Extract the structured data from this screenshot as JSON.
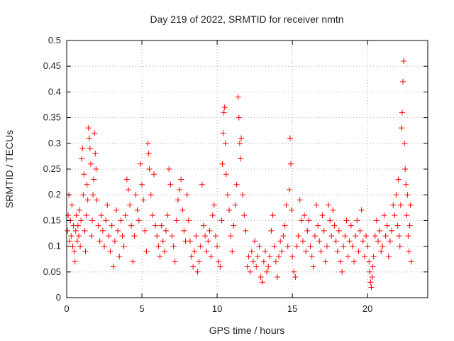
{
  "chart_data": {
    "type": "scatter",
    "title": "Day 219 of 2022, SRMTID for receiver nmtn",
    "xlabel": "GPS time / hours",
    "ylabel": "SRMTID / TECUs",
    "xlim": [
      0,
      24
    ],
    "ylim": [
      0,
      0.5
    ],
    "x_ticks": [
      0,
      5,
      10,
      15,
      20
    ],
    "x_tick_labels": [
      "0",
      "5",
      "10",
      "15",
      "20"
    ],
    "y_ticks": [
      0,
      0.05,
      0.1,
      0.15,
      0.2,
      0.25,
      0.3,
      0.35,
      0.4,
      0.45,
      0.5
    ],
    "y_tick_labels": [
      "0",
      "0.05",
      "0.1",
      "0.15",
      "0.2",
      "0.25",
      "0.3",
      "0.35",
      "0.4",
      "0.45",
      "0.5"
    ],
    "grid": true,
    "marker": "+",
    "series": [
      {
        "name": "SRMTID",
        "color": "#ff0000",
        "points": [
          [
            0.05,
            0.13
          ],
          [
            0.1,
            0.16
          ],
          [
            0.15,
            0.2
          ],
          [
            0.2,
            0.11
          ],
          [
            0.25,
            0.15
          ],
          [
            0.3,
            0.12
          ],
          [
            0.35,
            0.18
          ],
          [
            0.4,
            0.1
          ],
          [
            0.45,
            0.14
          ],
          [
            0.5,
            0.09
          ],
          [
            0.55,
            0.07
          ],
          [
            0.6,
            0.13
          ],
          [
            0.65,
            0.16
          ],
          [
            0.7,
            0.11
          ],
          [
            0.75,
            0.14
          ],
          [
            0.8,
            0.12
          ],
          [
            0.85,
            0.17
          ],
          [
            0.9,
            0.1
          ],
          [
            0.95,
            0.15
          ],
          [
            1.0,
            0.27
          ],
          [
            1.05,
            0.29
          ],
          [
            1.1,
            0.2
          ],
          [
            1.15,
            0.24
          ],
          [
            1.2,
            0.13
          ],
          [
            1.25,
            0.09
          ],
          [
            1.3,
            0.16
          ],
          [
            1.35,
            0.22
          ],
          [
            1.4,
            0.19
          ],
          [
            1.45,
            0.33
          ],
          [
            1.5,
            0.31
          ],
          [
            1.55,
            0.29
          ],
          [
            1.6,
            0.26
          ],
          [
            1.65,
            0.12
          ],
          [
            1.7,
            0.15
          ],
          [
            1.75,
            0.2
          ],
          [
            1.8,
            0.23
          ],
          [
            1.85,
            0.32
          ],
          [
            1.9,
            0.28
          ],
          [
            1.95,
            0.25
          ],
          [
            2.0,
            0.19
          ],
          [
            2.1,
            0.14
          ],
          [
            2.2,
            0.11
          ],
          [
            2.3,
            0.16
          ],
          [
            2.4,
            0.13
          ],
          [
            2.5,
            0.1
          ],
          [
            2.6,
            0.15
          ],
          [
            2.7,
            0.18
          ],
          [
            2.8,
            0.12
          ],
          [
            2.9,
            0.09
          ],
          [
            3.0,
            0.14
          ],
          [
            3.1,
            0.06
          ],
          [
            3.2,
            0.11
          ],
          [
            3.3,
            0.17
          ],
          [
            3.4,
            0.13
          ],
          [
            3.5,
            0.08
          ],
          [
            3.6,
            0.15
          ],
          [
            3.7,
            0.12
          ],
          [
            3.8,
            0.1
          ],
          [
            3.9,
            0.16
          ],
          [
            4.0,
            0.23
          ],
          [
            4.1,
            0.21
          ],
          [
            4.2,
            0.18
          ],
          [
            4.3,
            0.14
          ],
          [
            4.4,
            0.07
          ],
          [
            4.5,
            0.12
          ],
          [
            4.6,
            0.2
          ],
          [
            4.7,
            0.17
          ],
          [
            4.8,
            0.15
          ],
          [
            4.9,
            0.26
          ],
          [
            5.0,
            0.22
          ],
          [
            5.1,
            0.19
          ],
          [
            5.2,
            0.13
          ],
          [
            5.3,
            0.09
          ],
          [
            5.4,
            0.3
          ],
          [
            5.45,
            0.28
          ],
          [
            5.5,
            0.25
          ],
          [
            5.6,
            0.2
          ],
          [
            5.7,
            0.16
          ],
          [
            5.8,
            0.24
          ],
          [
            5.9,
            0.14
          ],
          [
            6.0,
            0.12
          ],
          [
            6.1,
            0.1
          ],
          [
            6.2,
            0.08
          ],
          [
            6.3,
            0.14
          ],
          [
            6.4,
            0.11
          ],
          [
            6.5,
            0.09
          ],
          [
            6.6,
            0.13
          ],
          [
            6.7,
            0.16
          ],
          [
            6.8,
            0.25
          ],
          [
            6.9,
            0.22
          ],
          [
            7.0,
            0.12
          ],
          [
            7.1,
            0.1
          ],
          [
            7.2,
            0.07
          ],
          [
            7.3,
            0.15
          ],
          [
            7.4,
            0.19
          ],
          [
            7.5,
            0.21
          ],
          [
            7.6,
            0.23
          ],
          [
            7.7,
            0.17
          ],
          [
            7.8,
            0.13
          ],
          [
            7.9,
            0.11
          ],
          [
            8.0,
            0.2
          ],
          [
            8.1,
            0.15
          ],
          [
            8.2,
            0.11
          ],
          [
            8.3,
            0.08
          ],
          [
            8.4,
            0.06
          ],
          [
            8.5,
            0.09
          ],
          [
            8.6,
            0.12
          ],
          [
            8.7,
            0.05
          ],
          [
            8.8,
            0.07
          ],
          [
            8.9,
            0.1
          ],
          [
            9.0,
            0.22
          ],
          [
            9.1,
            0.14
          ],
          [
            9.2,
            0.12
          ],
          [
            9.3,
            0.09
          ],
          [
            9.4,
            0.11
          ],
          [
            9.5,
            0.13
          ],
          [
            9.6,
            0.08
          ],
          [
            9.7,
            0.16
          ],
          [
            9.8,
            0.18
          ],
          [
            9.9,
            0.12
          ],
          [
            10.0,
            0.1
          ],
          [
            10.1,
            0.07
          ],
          [
            10.2,
            0.06
          ],
          [
            10.3,
            0.15
          ],
          [
            10.35,
            0.26
          ],
          [
            10.4,
            0.32
          ],
          [
            10.45,
            0.36
          ],
          [
            10.5,
            0.37
          ],
          [
            10.55,
            0.3
          ],
          [
            10.6,
            0.24
          ],
          [
            10.7,
            0.2
          ],
          [
            10.8,
            0.17
          ],
          [
            10.9,
            0.12
          ],
          [
            11.0,
            0.09
          ],
          [
            11.1,
            0.14
          ],
          [
            11.2,
            0.18
          ],
          [
            11.3,
            0.22
          ],
          [
            11.4,
            0.39
          ],
          [
            11.45,
            0.35
          ],
          [
            11.5,
            0.3
          ],
          [
            11.55,
            0.27
          ],
          [
            11.6,
            0.31
          ],
          [
            11.7,
            0.2
          ],
          [
            11.8,
            0.16
          ],
          [
            11.9,
            0.13
          ],
          [
            12.0,
            0.06
          ],
          [
            12.1,
            0.08
          ],
          [
            12.2,
            0.05
          ],
          [
            12.3,
            0.09
          ],
          [
            12.4,
            0.07
          ],
          [
            12.5,
            0.11
          ],
          [
            12.6,
            0.06
          ],
          [
            12.7,
            0.08
          ],
          [
            12.8,
            0.1
          ],
          [
            12.9,
            0.04
          ],
          [
            13.0,
            0.03
          ],
          [
            13.1,
            0.07
          ],
          [
            13.2,
            0.09
          ],
          [
            13.3,
            0.05
          ],
          [
            13.4,
            0.06
          ],
          [
            13.5,
            0.08
          ],
          [
            13.6,
            0.13
          ],
          [
            13.7,
            0.16
          ],
          [
            13.8,
            0.1
          ],
          [
            13.9,
            0.07
          ],
          [
            14.0,
            0.04
          ],
          [
            14.1,
            0.08
          ],
          [
            14.2,
            0.11
          ],
          [
            14.3,
            0.09
          ],
          [
            14.4,
            0.12
          ],
          [
            14.5,
            0.14
          ],
          [
            14.6,
            0.18
          ],
          [
            14.7,
            0.1
          ],
          [
            14.8,
            0.21
          ],
          [
            14.85,
            0.31
          ],
          [
            14.9,
            0.26
          ],
          [
            14.95,
            0.17
          ],
          [
            15.0,
            0.08
          ],
          [
            15.1,
            0.05
          ],
          [
            15.2,
            0.04
          ],
          [
            15.3,
            0.1
          ],
          [
            15.4,
            0.12
          ],
          [
            15.5,
            0.19
          ],
          [
            15.6,
            0.15
          ],
          [
            15.7,
            0.11
          ],
          [
            15.8,
            0.16
          ],
          [
            15.9,
            0.09
          ],
          [
            16.0,
            0.13
          ],
          [
            16.1,
            0.15
          ],
          [
            16.2,
            0.1
          ],
          [
            16.3,
            0.08
          ],
          [
            16.4,
            0.06
          ],
          [
            16.5,
            0.12
          ],
          [
            16.6,
            0.18
          ],
          [
            16.7,
            0.14
          ],
          [
            16.8,
            0.11
          ],
          [
            16.9,
            0.09
          ],
          [
            17.0,
            0.16
          ],
          [
            17.1,
            0.13
          ],
          [
            17.2,
            0.07
          ],
          [
            17.3,
            0.1
          ],
          [
            17.4,
            0.18
          ],
          [
            17.5,
            0.15
          ],
          [
            17.6,
            0.12
          ],
          [
            17.7,
            0.17
          ],
          [
            17.8,
            0.14
          ],
          [
            17.9,
            0.11
          ],
          [
            18.0,
            0.09
          ],
          [
            18.1,
            0.13
          ],
          [
            18.2,
            0.07
          ],
          [
            18.3,
            0.05
          ],
          [
            18.4,
            0.1
          ],
          [
            18.5,
            0.12
          ],
          [
            18.6,
            0.15
          ],
          [
            18.7,
            0.08
          ],
          [
            18.8,
            0.11
          ],
          [
            18.9,
            0.14
          ],
          [
            19.0,
            0.1
          ],
          [
            19.1,
            0.07
          ],
          [
            19.2,
            0.12
          ],
          [
            19.3,
            0.15
          ],
          [
            19.4,
            0.09
          ],
          [
            19.5,
            0.13
          ],
          [
            19.6,
            0.17
          ],
          [
            19.7,
            0.11
          ],
          [
            19.8,
            0.08
          ],
          [
            19.9,
            0.12
          ],
          [
            20.0,
            0.1
          ],
          [
            20.1,
            0.07
          ],
          [
            20.15,
            0.05
          ],
          [
            20.2,
            0.03
          ],
          [
            20.25,
            0.02
          ],
          [
            20.3,
            0.04
          ],
          [
            20.35,
            0.06
          ],
          [
            20.4,
            0.08
          ],
          [
            20.5,
            0.12
          ],
          [
            20.6,
            0.15
          ],
          [
            20.7,
            0.11
          ],
          [
            20.8,
            0.13
          ],
          [
            20.9,
            0.09
          ],
          [
            21.0,
            0.1
          ],
          [
            21.1,
            0.16
          ],
          [
            21.2,
            0.12
          ],
          [
            21.3,
            0.14
          ],
          [
            21.4,
            0.08
          ],
          [
            21.5,
            0.11
          ],
          [
            21.6,
            0.13
          ],
          [
            21.7,
            0.18
          ],
          [
            21.8,
            0.16
          ],
          [
            21.9,
            0.2
          ],
          [
            22.0,
            0.14
          ],
          [
            22.05,
            0.23
          ],
          [
            22.1,
            0.12
          ],
          [
            22.15,
            0.1
          ],
          [
            22.2,
            0.18
          ],
          [
            22.25,
            0.33
          ],
          [
            22.3,
            0.36
          ],
          [
            22.35,
            0.42
          ],
          [
            22.4,
            0.46
          ],
          [
            22.45,
            0.3
          ],
          [
            22.5,
            0.25
          ],
          [
            22.55,
            0.22
          ],
          [
            22.6,
            0.16
          ],
          [
            22.65,
            0.2
          ],
          [
            22.7,
            0.12
          ],
          [
            22.75,
            0.09
          ],
          [
            22.8,
            0.14
          ],
          [
            22.85,
            0.18
          ],
          [
            22.9,
            0.07
          ]
        ]
      }
    ]
  }
}
